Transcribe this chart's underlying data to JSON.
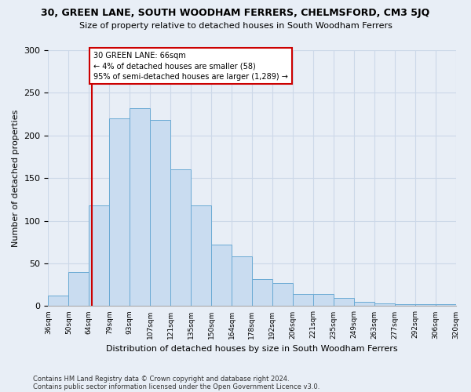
{
  "title": "30, GREEN LANE, SOUTH WOODHAM FERRERS, CHELMSFORD, CM3 5JQ",
  "subtitle": "Size of property relative to detached houses in South Woodham Ferrers",
  "xlabel": "Distribution of detached houses by size in South Woodham Ferrers",
  "ylabel": "Number of detached properties",
  "bin_labels": [
    "36sqm",
    "50sqm",
    "64sqm",
    "79sqm",
    "93sqm",
    "107sqm",
    "121sqm",
    "135sqm",
    "150sqm",
    "164sqm",
    "178sqm",
    "192sqm",
    "206sqm",
    "221sqm",
    "235sqm",
    "249sqm",
    "263sqm",
    "277sqm",
    "292sqm",
    "306sqm",
    "320sqm"
  ],
  "bar_heights": [
    12,
    40,
    118,
    220,
    232,
    218,
    160,
    118,
    72,
    58,
    32,
    27,
    14,
    14,
    10,
    5,
    3,
    2,
    2,
    2
  ],
  "bar_color": "#c9dcf0",
  "bar_edge_color": "#6aaad4",
  "grid_color": "#ccd8e8",
  "background_color": "#e8eef6",
  "marker_label": "30 GREEN LANE: 66sqm",
  "annotation_line1": "← 4% of detached houses are smaller (58)",
  "annotation_line2": "95% of semi-detached houses are larger (1,289) →",
  "box_color": "#cc0000",
  "ylim": [
    0,
    300
  ],
  "yticks": [
    0,
    50,
    100,
    150,
    200,
    250,
    300
  ],
  "footnote1": "Contains HM Land Registry data © Crown copyright and database right 2024.",
  "footnote2": "Contains public sector information licensed under the Open Government Licence v3.0."
}
